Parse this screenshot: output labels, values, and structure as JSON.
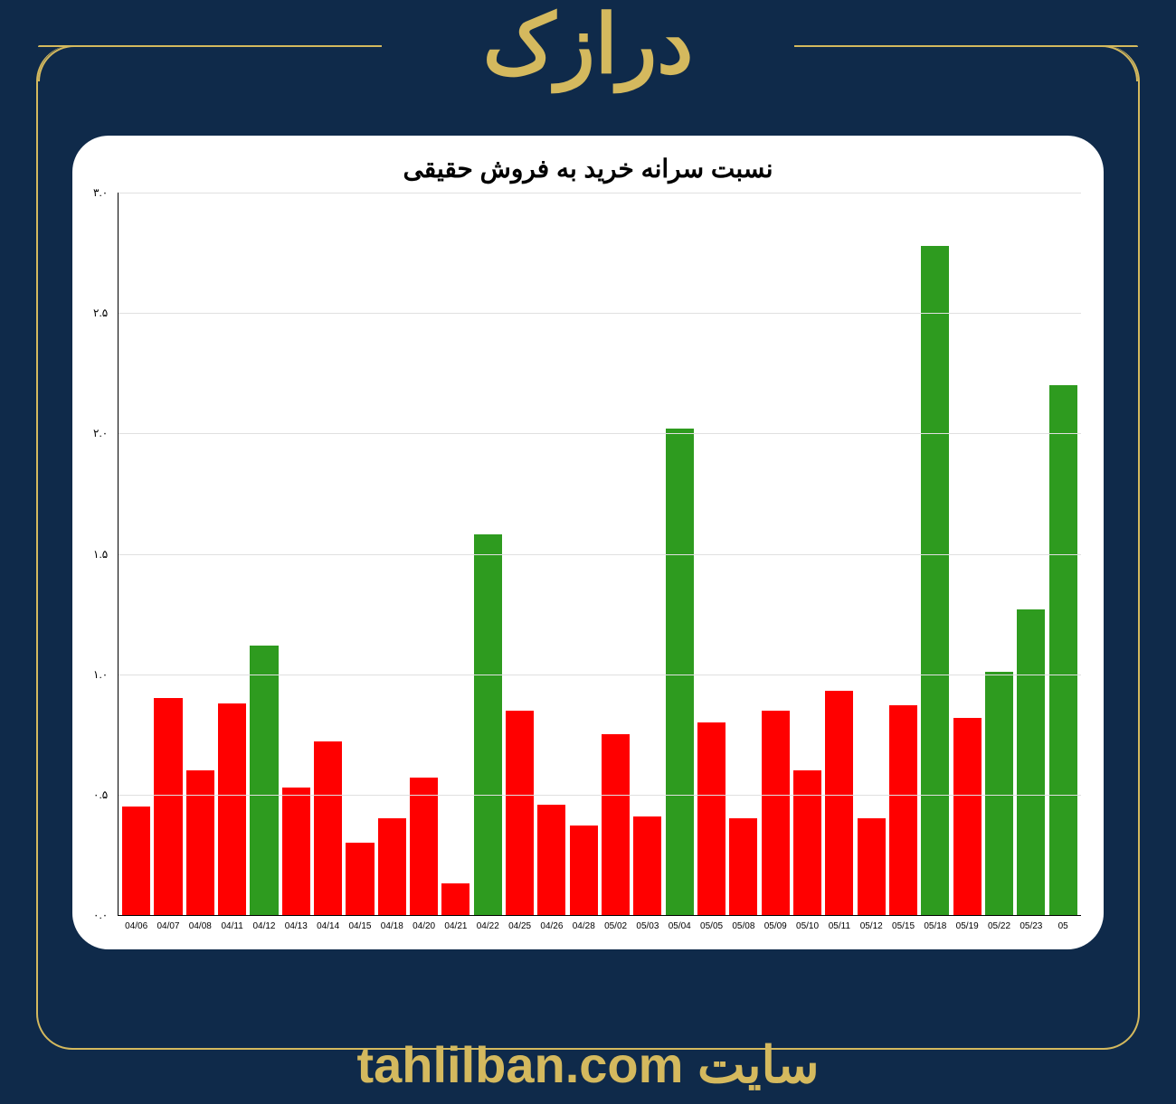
{
  "header": {
    "title": "درازک"
  },
  "footer": {
    "text_prefix": "سایت ",
    "domain": "tahlilban.com"
  },
  "chart": {
    "type": "bar",
    "title": "نسبت سرانه خرید به فروش حقیقی",
    "title_fontsize": 28,
    "background_color": "#ffffff",
    "grid_color": "#e0e0e0",
    "axis_color": "#000000",
    "ylim": [
      0.0,
      3.0
    ],
    "ytick_step": 0.5,
    "ytick_labels": [
      "۰.۰",
      "۰.۵",
      "۱.۰",
      "۱.۵",
      "۲.۰",
      "۲.۵",
      "۳.۰"
    ],
    "bar_width": 0.88,
    "color_positive": "#2e9b1f",
    "color_negative": "#ff0000",
    "categories": [
      "04/06",
      "04/07",
      "04/08",
      "04/11",
      "04/12",
      "04/13",
      "04/14",
      "04/15",
      "04/18",
      "04/20",
      "04/21",
      "04/22",
      "04/25",
      "04/26",
      "04/28",
      "05/02",
      "05/03",
      "05/04",
      "05/05",
      "05/08",
      "05/09",
      "05/10",
      "05/11",
      "05/12",
      "05/15",
      "05/18",
      "05/19",
      "05/22",
      "05/23",
      "05"
    ],
    "values": [
      0.45,
      0.9,
      0.6,
      0.88,
      1.12,
      0.53,
      0.72,
      0.3,
      0.4,
      0.57,
      0.13,
      1.58,
      0.85,
      0.46,
      0.37,
      0.75,
      0.41,
      2.02,
      0.8,
      0.4,
      0.85,
      0.6,
      0.93,
      0.4,
      0.87,
      2.78,
      0.82,
      1.01,
      1.27,
      2.2
    ]
  },
  "colors": {
    "page_bg": "#0f2a4a",
    "accent": "#d4b95e",
    "card_bg": "#ffffff"
  }
}
